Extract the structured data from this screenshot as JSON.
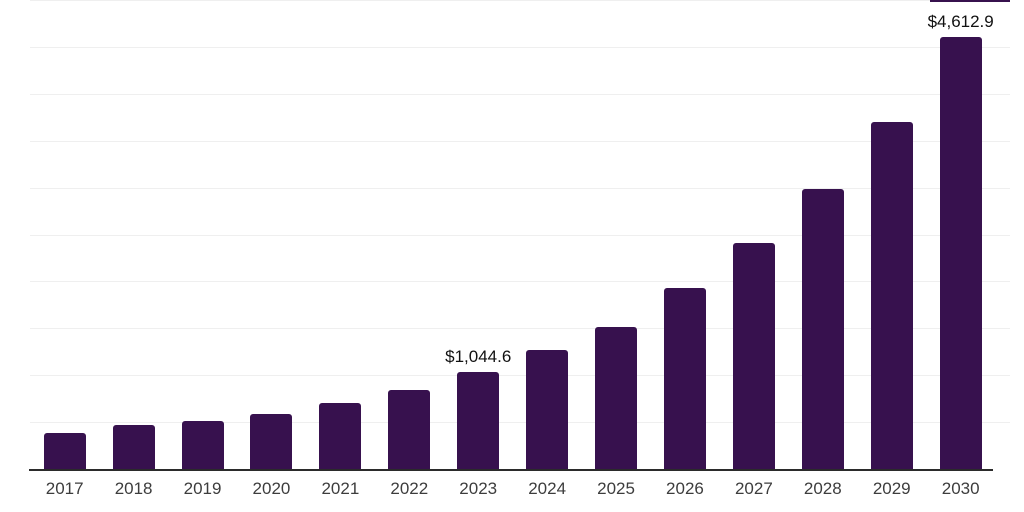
{
  "chart": {
    "background_color": "#ffffff",
    "bar_color": "#37114e",
    "gridline_color": "#efefef",
    "axis_line_color": "#2b2b2b",
    "tick_label_color": "#3d3d3d",
    "value_label_color": "#111111"
  },
  "chart_data": {
    "type": "bar",
    "title": "",
    "xlabel": "",
    "ylabel": "",
    "categories": [
      "2017",
      "2018",
      "2019",
      "2020",
      "2021",
      "2022",
      "2023",
      "2024",
      "2025",
      "2026",
      "2027",
      "2028",
      "2029",
      "2030"
    ],
    "values": [
      390,
      485,
      520,
      600,
      710,
      855,
      1044.6,
      1280,
      1525,
      1940,
      2415,
      3000,
      3710,
      4612.9
    ],
    "data_labels": [
      {
        "category": "2023",
        "text": "$1,044.6"
      },
      {
        "category": "2030",
        "text": "$4,612.9"
      }
    ],
    "ylim": [
      0,
      5000
    ],
    "grid_step": 500,
    "grid": true,
    "legend": false,
    "y_axis_ticks_visible": false
  }
}
